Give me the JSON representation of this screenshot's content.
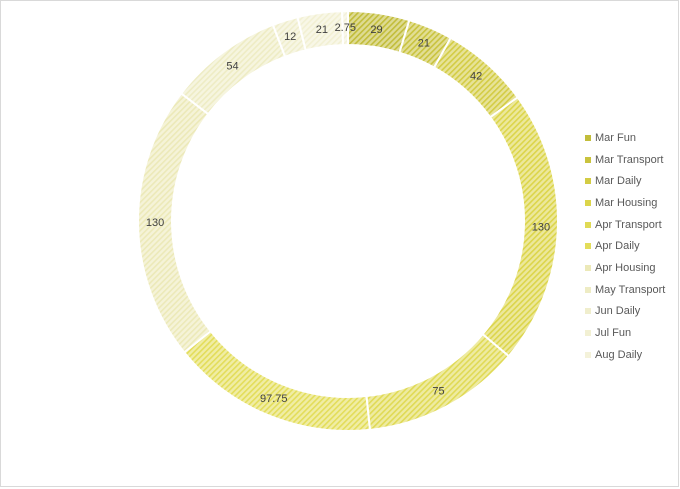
{
  "chart_data": {
    "type": "pie",
    "donut": true,
    "title": "",
    "legend_position": "right",
    "categories": [
      "Mar Fun",
      "Mar Transport",
      "Mar Daily",
      "Mar Housing",
      "Apr Transport",
      "Apr Daily",
      "Apr Housing",
      "May Transport",
      "Jun Daily",
      "Jul Fun",
      "Aug Daily"
    ],
    "values": [
      29,
      21,
      42,
      130,
      75,
      97.75,
      130,
      54,
      12,
      21,
      2.75
    ],
    "labels": [
      "29",
      "21",
      "42",
      "130",
      "75",
      "97.75",
      "130",
      "54",
      "12",
      "21",
      "2.75"
    ],
    "colors": [
      "#c2bd3a",
      "#c9c33e",
      "#d3cc44",
      "#dcd54a",
      "#e0da55",
      "#e3dd5a",
      "#ece9b8",
      "#eeecc4",
      "#f0eecd",
      "#f2f0d3",
      "#f4f2da"
    ]
  }
}
